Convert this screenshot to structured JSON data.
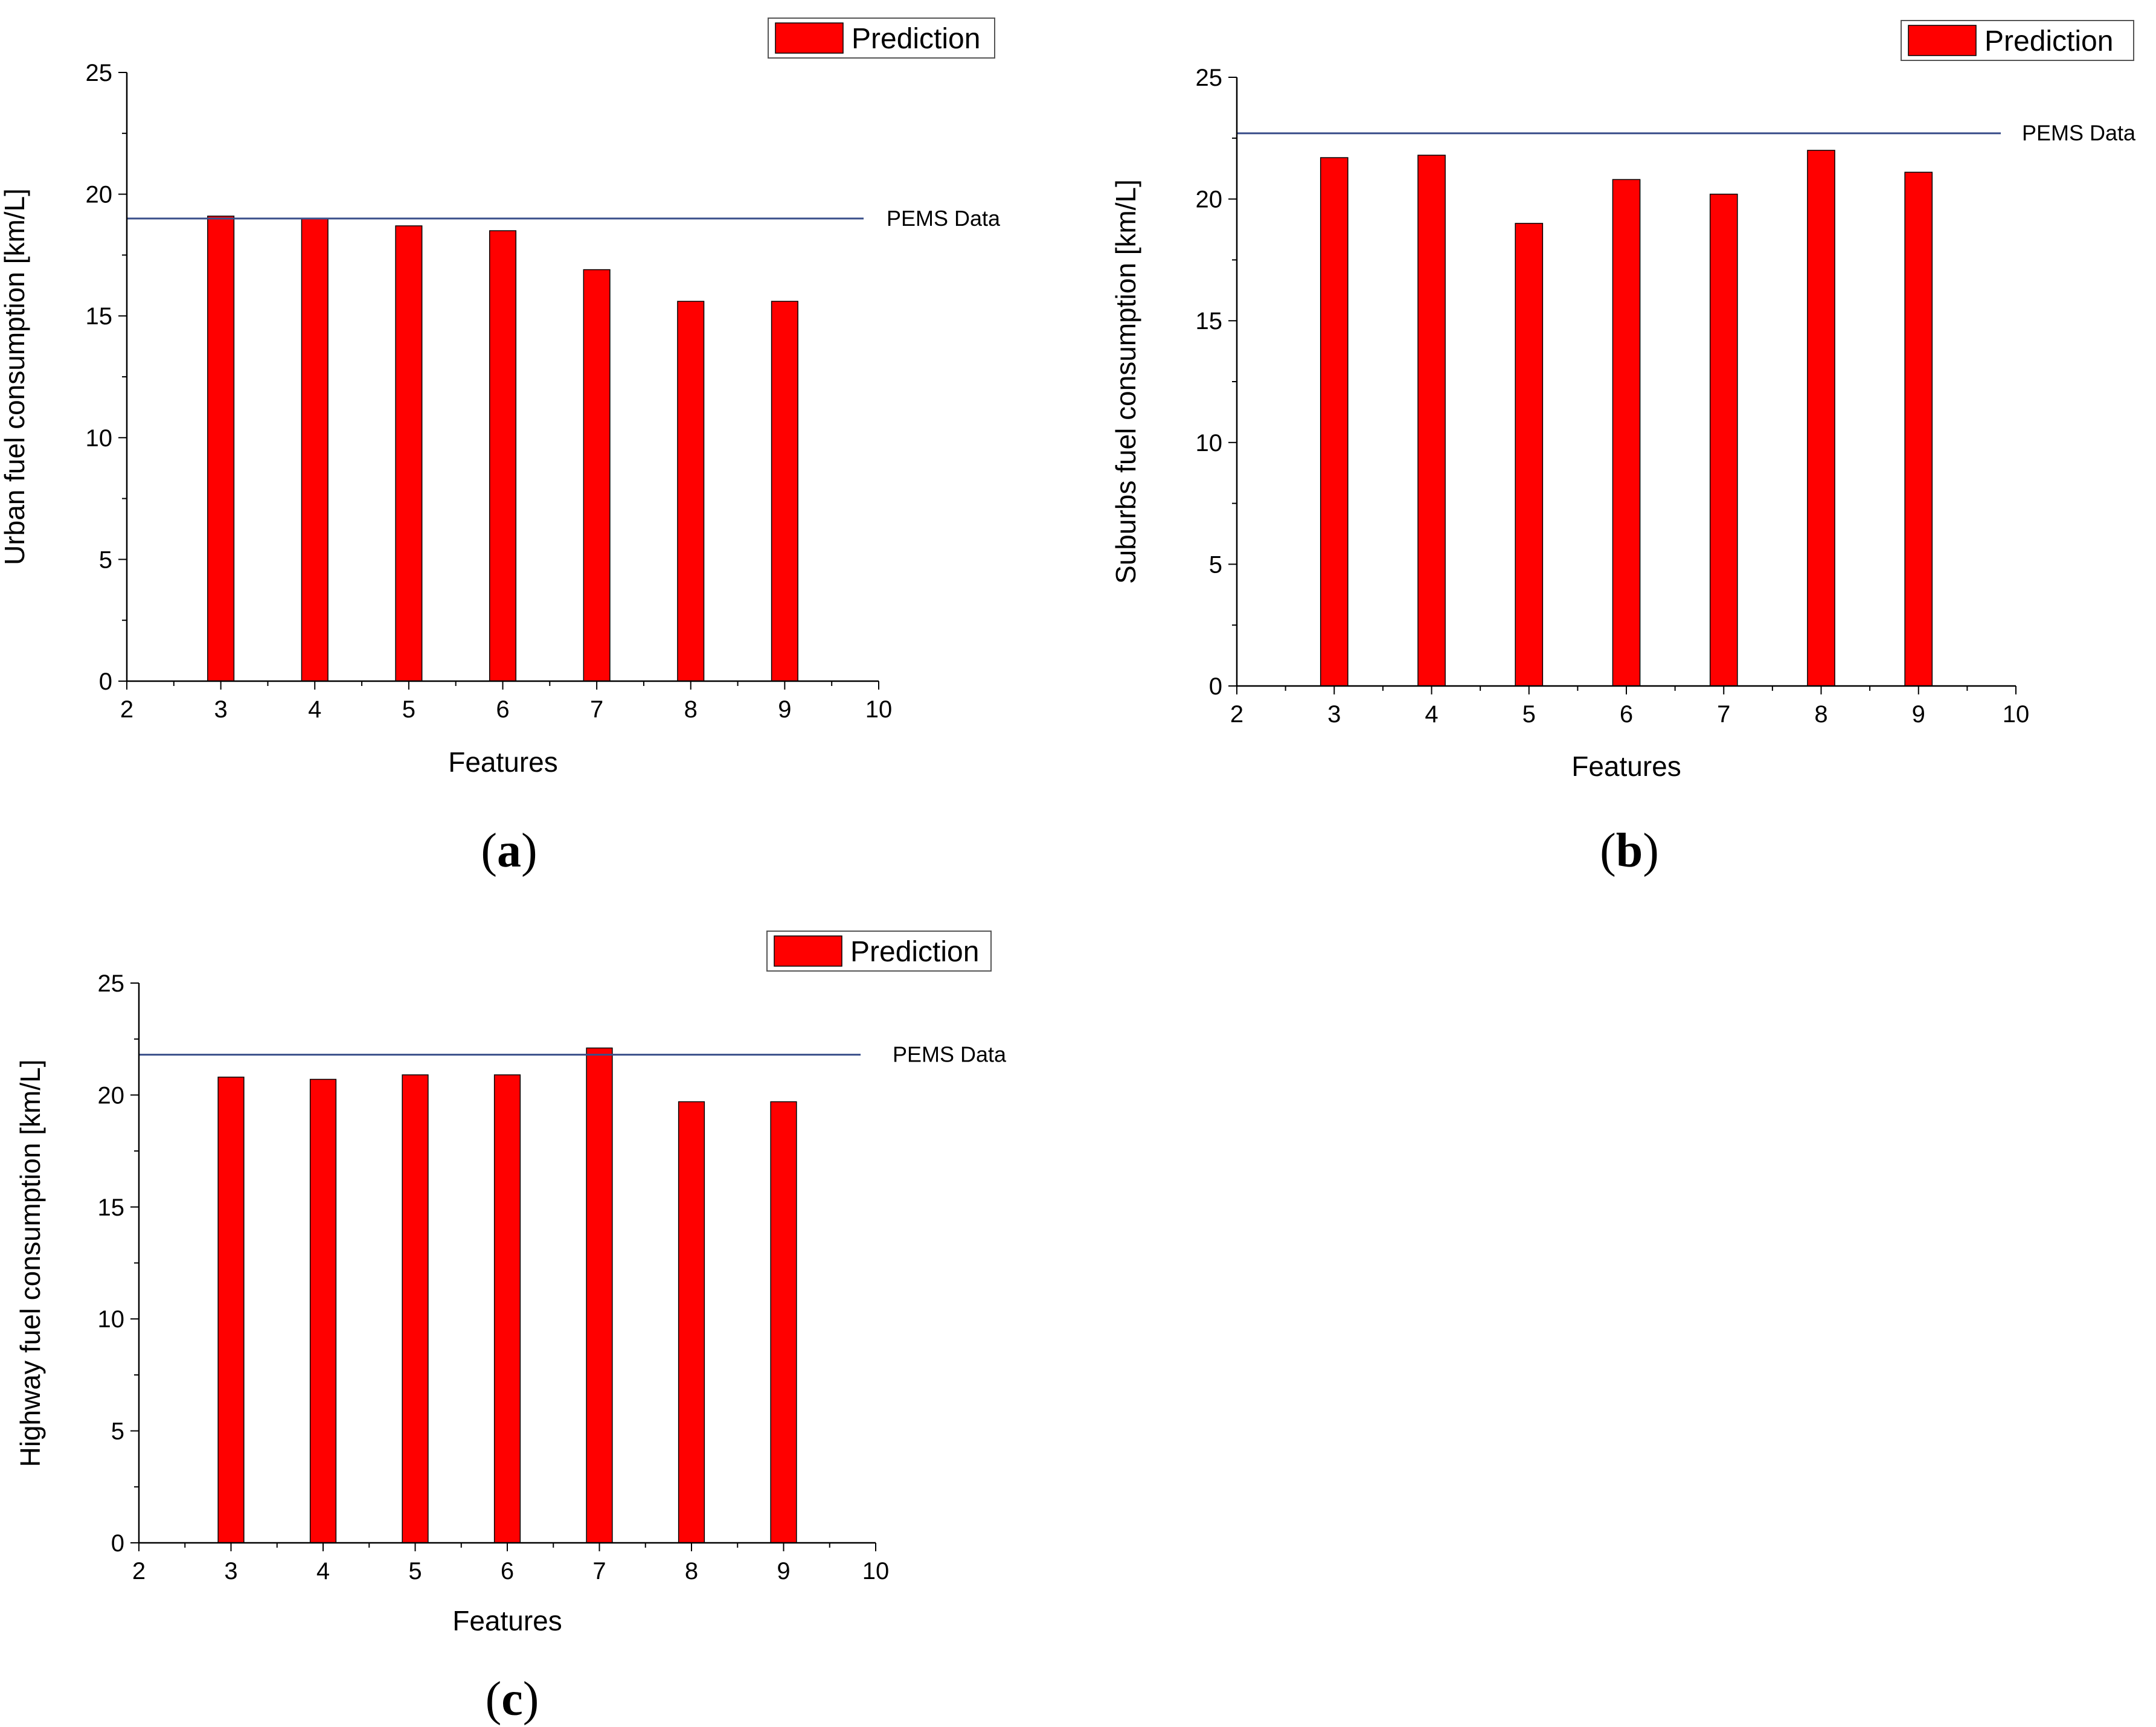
{
  "colors": {
    "bar": "#ff0000",
    "bar_edge": "#000000",
    "reference_line": "#3a4f8a",
    "axis": "#000000"
  },
  "chart_data": [
    {
      "type": "bar",
      "panel": "(a)",
      "panel_letter": "a",
      "xlabel": "Features",
      "ylabel": "Urban fuel consumption [km/L]",
      "xlim": [
        2,
        10
      ],
      "ylim": [
        0,
        25
      ],
      "xticks": [
        2,
        3,
        4,
        5,
        6,
        7,
        8,
        9,
        10
      ],
      "yticks": [
        0,
        5,
        10,
        15,
        20,
        25
      ],
      "categories": [
        3,
        4,
        5,
        6,
        7,
        8,
        9
      ],
      "series": [
        {
          "name": "Prediction",
          "values": [
            19.1,
            19.0,
            18.7,
            18.5,
            16.9,
            15.6,
            15.6
          ]
        }
      ],
      "reference_line": {
        "label": "PEMS Data",
        "value": 19.0
      },
      "legend": {
        "label": "Prediction",
        "position": "top-right"
      }
    },
    {
      "type": "bar",
      "panel": "(b)",
      "panel_letter": "b",
      "xlabel": "Features",
      "ylabel": "Suburbs fuel consumption [km/L]",
      "xlim": [
        2,
        10
      ],
      "ylim": [
        0,
        25
      ],
      "xticks": [
        2,
        3,
        4,
        5,
        6,
        7,
        8,
        9,
        10
      ],
      "yticks": [
        0,
        5,
        10,
        15,
        20,
        25
      ],
      "categories": [
        3,
        4,
        5,
        6,
        7,
        8,
        9
      ],
      "series": [
        {
          "name": "Prediction",
          "values": [
            21.7,
            21.8,
            19.0,
            20.8,
            20.2,
            22.0,
            21.1
          ]
        }
      ],
      "reference_line": {
        "label": "PEMS Data",
        "value": 22.7
      },
      "legend": {
        "label": "Prediction",
        "position": "top-right"
      }
    },
    {
      "type": "bar",
      "panel": "(c)",
      "panel_letter": "c",
      "xlabel": "Features",
      "ylabel": "Highway fuel consumption [km/L]",
      "xlim": [
        2,
        10
      ],
      "ylim": [
        0,
        25
      ],
      "xticks": [
        2,
        3,
        4,
        5,
        6,
        7,
        8,
        9,
        10
      ],
      "yticks": [
        0,
        5,
        10,
        15,
        20,
        25
      ],
      "categories": [
        3,
        4,
        5,
        6,
        7,
        8,
        9
      ],
      "series": [
        {
          "name": "Prediction",
          "values": [
            20.8,
            20.7,
            20.9,
            20.9,
            22.1,
            19.7,
            19.7
          ]
        }
      ],
      "reference_line": {
        "label": "PEMS Data",
        "value": 21.8
      },
      "legend": {
        "label": "Prediction",
        "position": "top-right"
      }
    }
  ]
}
